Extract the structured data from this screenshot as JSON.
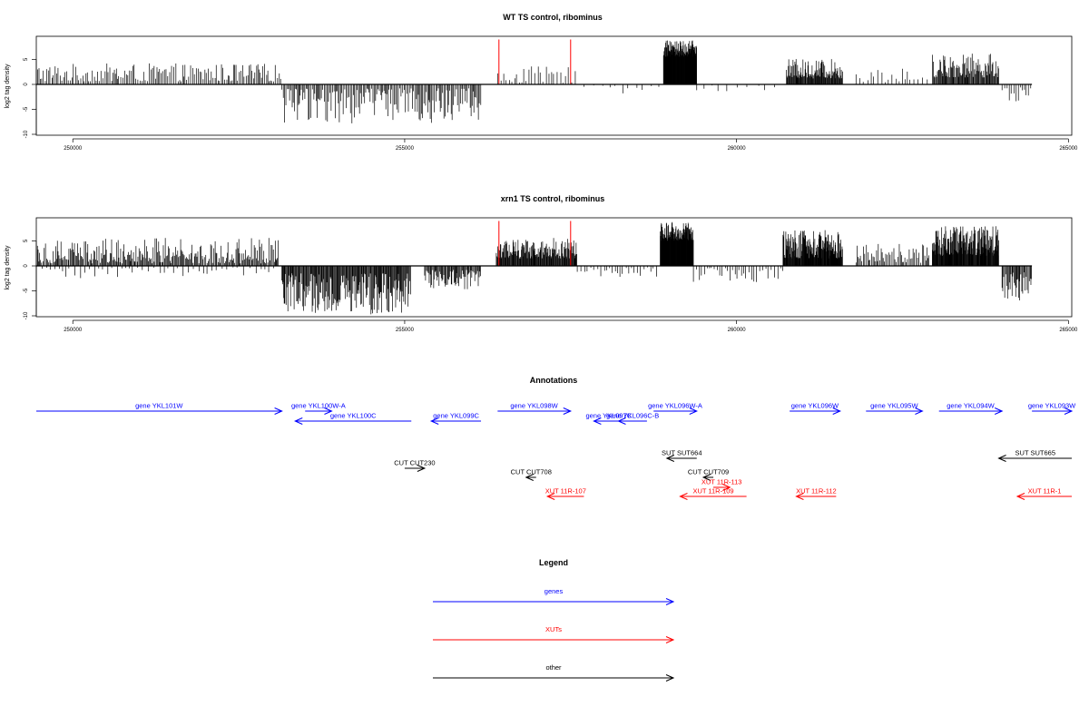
{
  "chart_data": [
    {
      "type": "bar",
      "title": "WT TS control, ribominus",
      "ylabel": "log2 tag density",
      "xlim": [
        249450,
        265050
      ],
      "ylim": [
        -10,
        10
      ],
      "y_ticks": [
        -10,
        -5,
        0,
        5
      ],
      "x_ticks": [
        250000,
        255000,
        260000,
        265000
      ],
      "x_tick_labels": [
        "250000",
        "255000",
        "260000",
        "265000"
      ],
      "baseline": {
        "from": 249450,
        "to": 264450,
        "value": 0
      },
      "highlight_lines": [
        {
          "x": 256420,
          "y": 9,
          "color": "#ff0000"
        },
        {
          "x": 257500,
          "y": 9,
          "color": "#ff0000"
        }
      ],
      "bar_regions": [
        {
          "from": 249450,
          "to": 253150,
          "sign": 1,
          "min": 0.6,
          "max": 4.2,
          "step": 25
        },
        {
          "from": 253150,
          "to": 256150,
          "sign": -1,
          "min": 0.8,
          "max": 7.8,
          "step": 18
        },
        {
          "from": 256400,
          "to": 257600,
          "sign": 1,
          "min": 0.3,
          "max": 3.6,
          "step": 40
        },
        {
          "from": 257700,
          "to": 258900,
          "sign": -1,
          "min": 0.2,
          "max": 1.8,
          "step": 120
        },
        {
          "from": 258900,
          "to": 259400,
          "sign": 1,
          "min": 5.5,
          "max": 8.8,
          "step": 4
        },
        {
          "from": 259400,
          "to": 260700,
          "sign": -1,
          "min": 0.2,
          "max": 1.6,
          "step": 140
        },
        {
          "from": 260750,
          "to": 261600,
          "sign": 1,
          "min": 1.2,
          "max": 5.1,
          "step": 9
        },
        {
          "from": 261800,
          "to": 262900,
          "sign": 1,
          "min": 0.4,
          "max": 3.2,
          "step": 55
        },
        {
          "from": 262950,
          "to": 263950,
          "sign": 1,
          "min": 1.4,
          "max": 6.2,
          "step": 11
        },
        {
          "from": 264000,
          "to": 264450,
          "sign": -1,
          "min": 0.6,
          "max": 3.8,
          "step": 30
        }
      ]
    },
    {
      "type": "bar",
      "title": "xrn1 TS control, ribominus",
      "ylabel": "log2 tag density",
      "xlim": [
        249450,
        265050
      ],
      "ylim": [
        -10,
        10
      ],
      "y_ticks": [
        -10,
        -5,
        0,
        5
      ],
      "x_ticks": [
        250000,
        255000,
        260000,
        265000
      ],
      "x_tick_labels": [
        "250000",
        "255000",
        "260000",
        "265000"
      ],
      "baseline": {
        "from": 249450,
        "to": 264450,
        "value": 0
      },
      "highlight_lines": [
        {
          "x": 256420,
          "y": 9,
          "color": "#ff0000"
        },
        {
          "x": 257500,
          "y": 9,
          "color": "#ff0000"
        }
      ],
      "bar_regions": [
        {
          "from": 249450,
          "to": 253100,
          "sign": 1,
          "min": 0.5,
          "max": 5.6,
          "step": 15
        },
        {
          "from": 249450,
          "to": 253100,
          "sign": -1,
          "min": 0.3,
          "max": 2.5,
          "step": 70
        },
        {
          "from": 253150,
          "to": 255100,
          "sign": -1,
          "min": 1.5,
          "max": 9.8,
          "step": 10
        },
        {
          "from": 255300,
          "to": 256150,
          "sign": -1,
          "min": 0.8,
          "max": 4.8,
          "step": 12
        },
        {
          "from": 256380,
          "to": 257600,
          "sign": 1,
          "min": 1.5,
          "max": 5.6,
          "step": 8
        },
        {
          "from": 257600,
          "to": 258800,
          "sign": -1,
          "min": 0.3,
          "max": 2.2,
          "step": 45
        },
        {
          "from": 258850,
          "to": 259350,
          "sign": 1,
          "min": 5.0,
          "max": 8.8,
          "step": 4
        },
        {
          "from": 259350,
          "to": 260700,
          "sign": -1,
          "min": 0.4,
          "max": 3.5,
          "step": 40
        },
        {
          "from": 260700,
          "to": 261600,
          "sign": 1,
          "min": 1.5,
          "max": 7.4,
          "step": 6
        },
        {
          "from": 261800,
          "to": 262900,
          "sign": 1,
          "min": 0.6,
          "max": 4.5,
          "step": 20
        },
        {
          "from": 262950,
          "to": 263950,
          "sign": 1,
          "min": 2.0,
          "max": 8.0,
          "step": 6
        },
        {
          "from": 264000,
          "to": 264450,
          "sign": -1,
          "min": 1.2,
          "max": 7.0,
          "step": 12
        }
      ]
    },
    {
      "type": "annotation-track",
      "title": "Annotations",
      "colors": {
        "gene": "#0000ff",
        "xut": "#ff0000",
        "other": "#000000"
      },
      "features": [
        {
          "label": "gene YKL101W",
          "kind": "gene",
          "start": 249450,
          "end": 253150,
          "strand": "+",
          "row": 0
        },
        {
          "label": "gene YKL100W-A",
          "kind": "gene",
          "start": 253500,
          "end": 253900,
          "strand": "+",
          "row": 0
        },
        {
          "label": "gene YKL100C",
          "kind": "gene",
          "start": 253350,
          "end": 255100,
          "strand": "-",
          "row": 1
        },
        {
          "label": "gene YKL099C",
          "kind": "gene",
          "start": 255400,
          "end": 256150,
          "strand": "-",
          "row": 1
        },
        {
          "label": "gene YKL098W",
          "kind": "gene",
          "start": 256400,
          "end": 257500,
          "strand": "+",
          "row": 0
        },
        {
          "label": "gene YKL097C",
          "kind": "gene",
          "start": 257850,
          "end": 258300,
          "strand": "-",
          "row": 1
        },
        {
          "label": "gene YKL096C-B",
          "kind": "gene",
          "start": 258220,
          "end": 258650,
          "strand": "-",
          "row": 1
        },
        {
          "label": "gene YKL096W-A",
          "kind": "gene",
          "start": 258750,
          "end": 259400,
          "strand": "+",
          "row": 0
        },
        {
          "label": "gene YKL096W",
          "kind": "gene",
          "start": 260800,
          "end": 261560,
          "strand": "+",
          "row": 0
        },
        {
          "label": "gene YKL095W",
          "kind": "gene",
          "start": 261950,
          "end": 262800,
          "strand": "+",
          "row": 0
        },
        {
          "label": "gene YKL094W",
          "kind": "gene",
          "start": 263050,
          "end": 264000,
          "strand": "+",
          "row": 0
        },
        {
          "label": "gene YKL093W",
          "kind": "gene",
          "start": 264450,
          "end": 265050,
          "strand": "+",
          "row": 0
        },
        {
          "label": "SUT SUT664",
          "kind": "other",
          "start": 258950,
          "end": 259400,
          "strand": "-",
          "row": 4
        },
        {
          "label": "SUT SUT665",
          "kind": "other",
          "start": 263950,
          "end": 265050,
          "strand": "-",
          "row": 4
        },
        {
          "label": "CUT CUT230",
          "kind": "other",
          "start": 255000,
          "end": 255300,
          "strand": "+",
          "row": 5
        },
        {
          "label": "CUT CUT708",
          "kind": "other",
          "start": 256830,
          "end": 256980,
          "strand": "-",
          "row": 6
        },
        {
          "label": "CUT CUT709",
          "kind": "other",
          "start": 259500,
          "end": 259650,
          "strand": "-",
          "row": 6
        },
        {
          "label": "XUT 11R-113",
          "kind": "xut",
          "start": 259650,
          "end": 259900,
          "strand": "+",
          "row": 7
        },
        {
          "label": "XUT 11R-107",
          "kind": "xut",
          "start": 257150,
          "end": 257700,
          "strand": "-",
          "row": 8
        },
        {
          "label": "XUT 11R-109",
          "kind": "xut",
          "start": 259150,
          "end": 260150,
          "strand": "-",
          "row": 8
        },
        {
          "label": "XUT 11R-112",
          "kind": "xut",
          "start": 260900,
          "end": 261500,
          "strand": "-",
          "row": 8
        },
        {
          "label": "XUT 11R-1",
          "kind": "xut",
          "start": 264230,
          "end": 265050,
          "strand": "-",
          "row": 8
        }
      ]
    },
    {
      "type": "legend",
      "title": "Legend",
      "entries": [
        {
          "label": "genes",
          "color": "#0000ff"
        },
        {
          "label": "XUTs",
          "color": "#ff0000"
        },
        {
          "label": "other",
          "color": "#000000"
        }
      ]
    }
  ]
}
